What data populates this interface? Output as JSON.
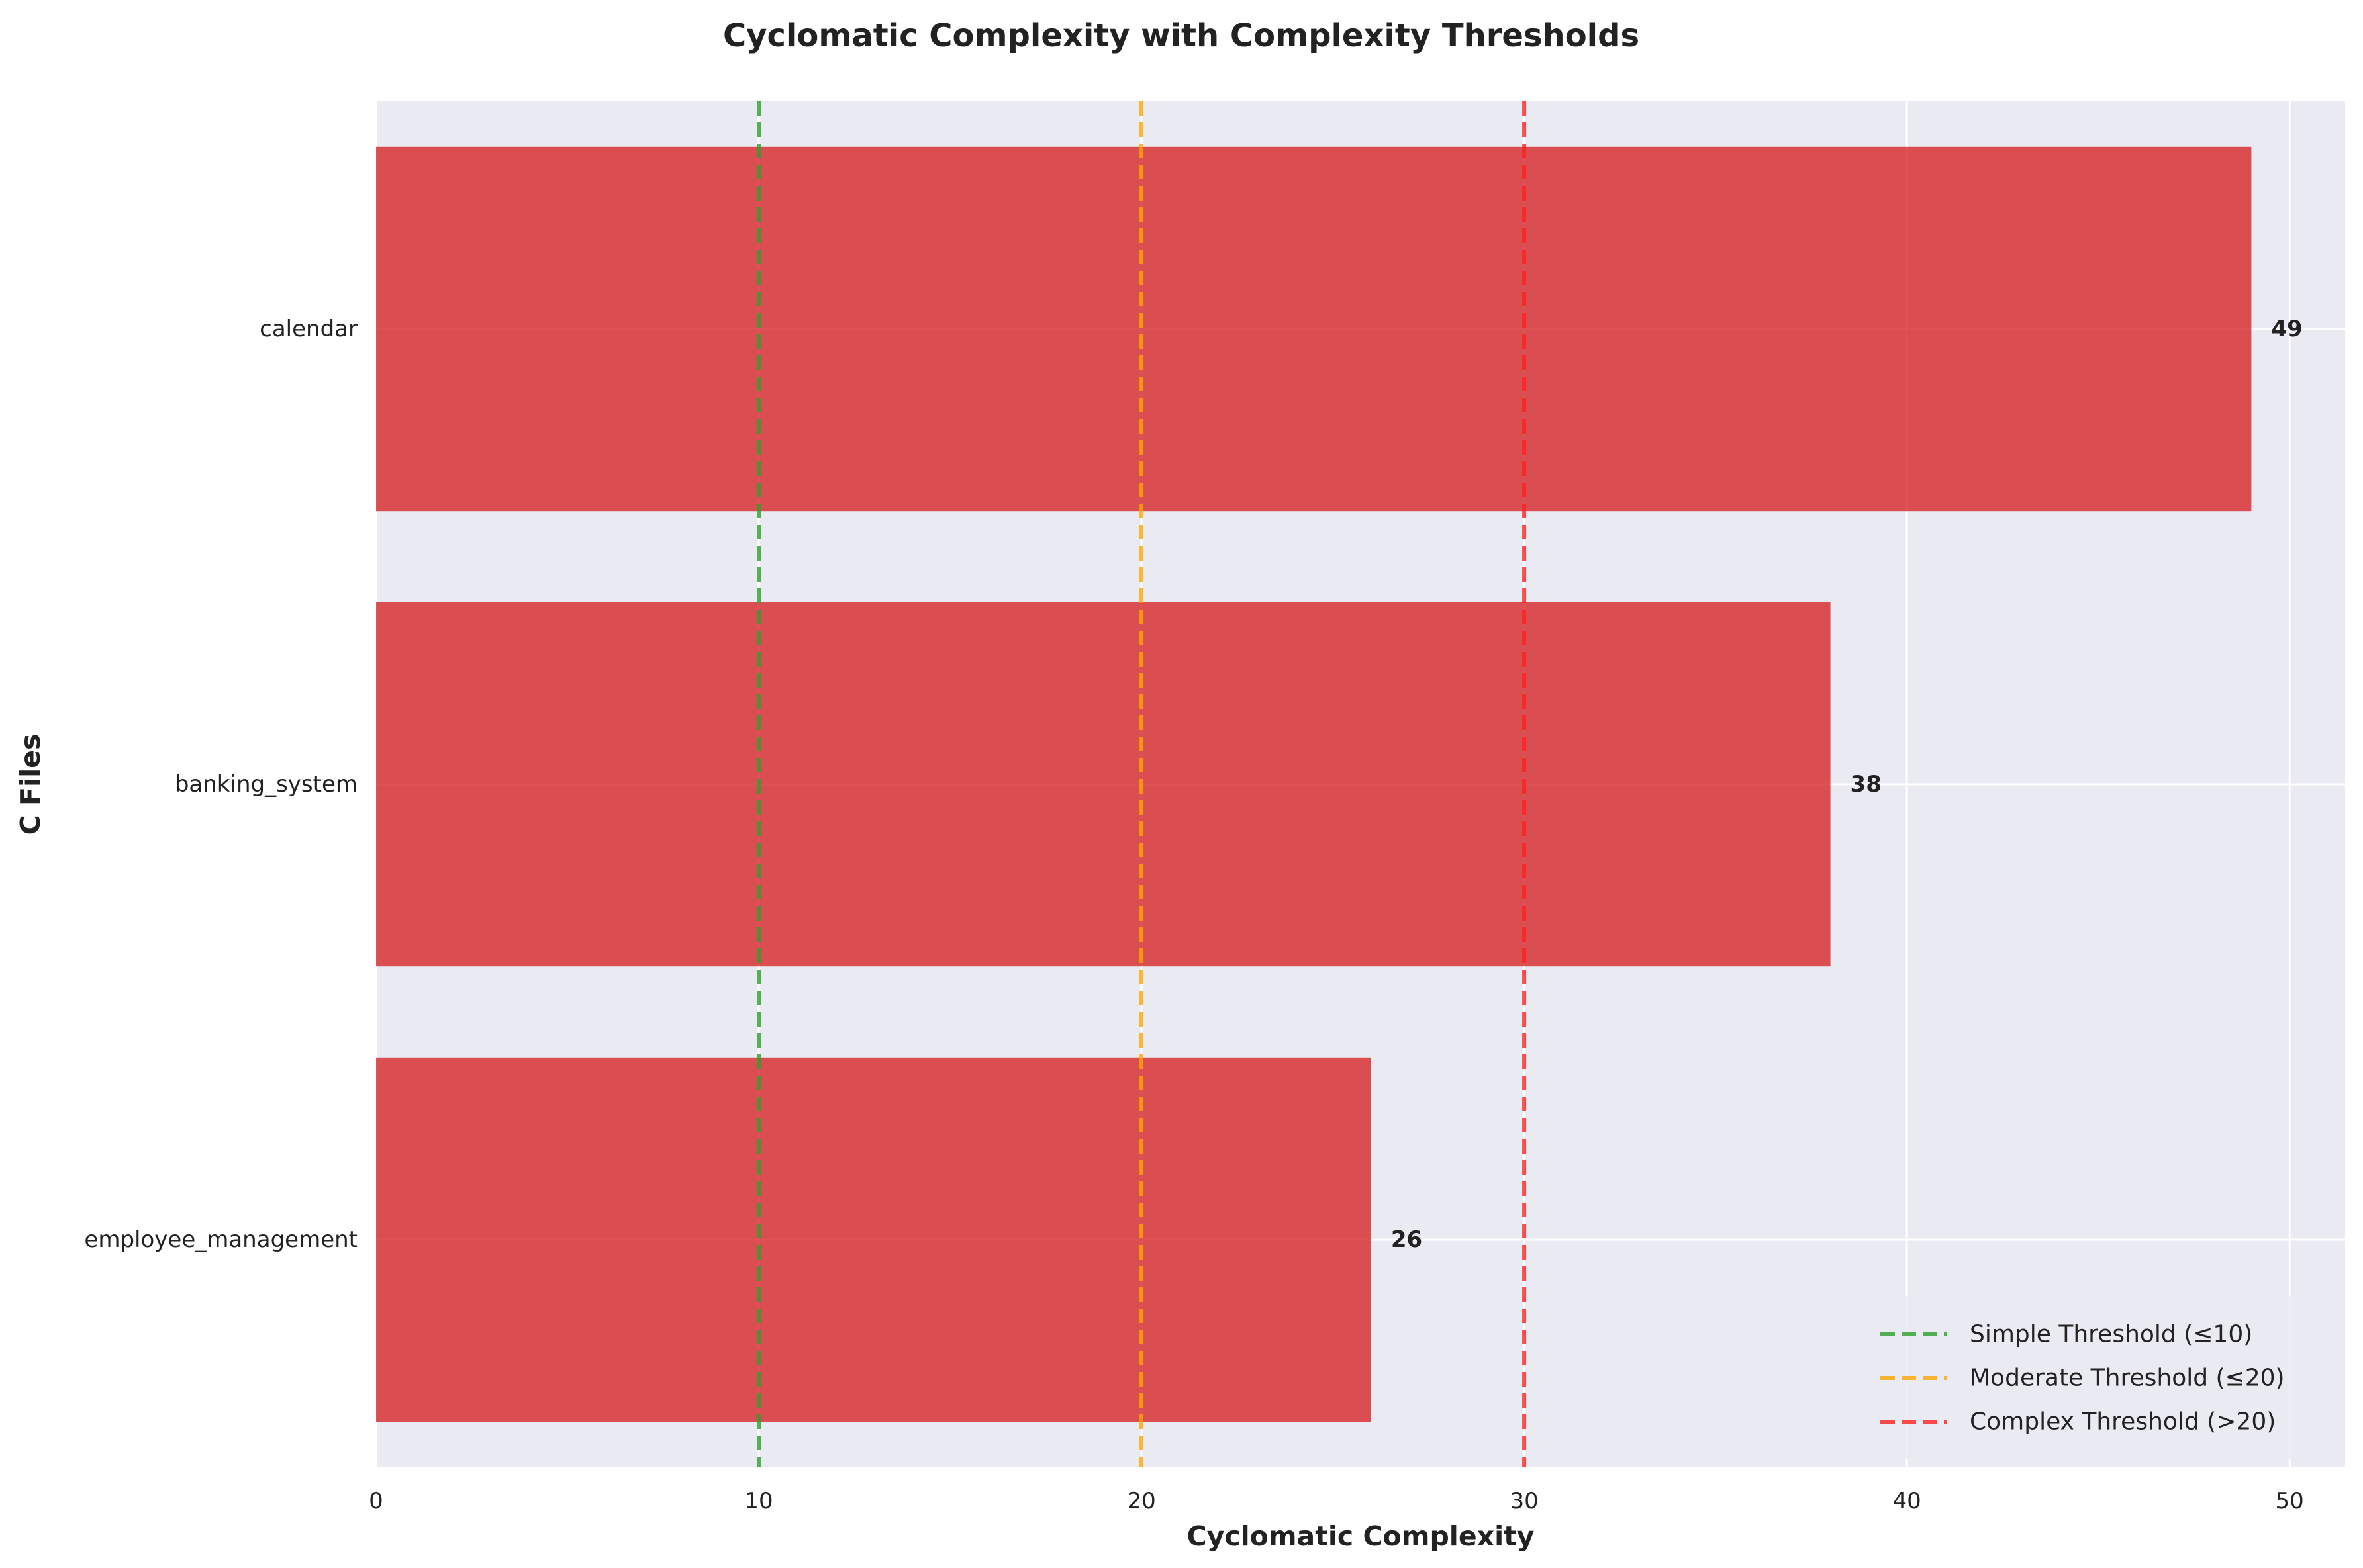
{
  "chart_data": {
    "type": "bar",
    "orientation": "horizontal",
    "title": "Cyclomatic Complexity with Complexity Thresholds",
    "xlabel": "Cyclomatic Complexity",
    "ylabel": "C Files",
    "categories": [
      "calendar",
      "banking_system",
      "employee_management"
    ],
    "values": [
      49,
      38,
      26
    ],
    "value_labels": [
      "49",
      "38",
      "26"
    ],
    "bar_color": "#d62728",
    "xlim": [
      0,
      51.45
    ],
    "xticks": [
      0,
      10,
      20,
      30,
      40,
      50
    ],
    "xtick_labels": [
      "0",
      "10",
      "20",
      "30",
      "40",
      "50"
    ],
    "grid": true,
    "background": "#eaeaf2",
    "thresholds": [
      {
        "name": "Simple Threshold (≤10)",
        "value": 10,
        "color": "#2ca02c"
      },
      {
        "name": "Moderate Threshold (≤20)",
        "value": 20,
        "color": "#ffa500"
      },
      {
        "name": "Complex Threshold (>20)",
        "value": 30,
        "color": "#ff2020"
      }
    ],
    "legend_position": "lower-right"
  }
}
